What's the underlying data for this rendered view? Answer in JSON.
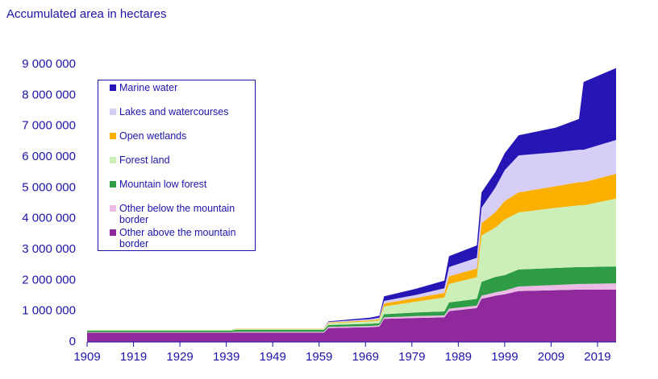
{
  "chart_data": {
    "type": "stacked-area",
    "title": "Accumulated area in hectares",
    "x": [
      1909,
      1940,
      1941,
      1960,
      1961,
      1970,
      1972,
      1973,
      1980,
      1986,
      1987,
      1993,
      1994,
      1997,
      1999,
      2002,
      2010,
      2015,
      2016,
      2023
    ],
    "series": [
      {
        "name": "Other above the mountain border",
        "color": "#902a9c",
        "values": [
          300000,
          300000,
          300000,
          300000,
          450000,
          480000,
          500000,
          750000,
          780000,
          800000,
          1000000,
          1100000,
          1400000,
          1500000,
          1550000,
          1650000,
          1680000,
          1700000,
          1700000,
          1700000
        ]
      },
      {
        "name": "Other below the mountain border",
        "color": "#ebbbe5",
        "values": [
          20000,
          20000,
          30000,
          30000,
          40000,
          40000,
          40000,
          50000,
          60000,
          60000,
          80000,
          80000,
          100000,
          110000,
          120000,
          150000,
          170000,
          180000,
          180000,
          200000
        ]
      },
      {
        "name": "Mountain low forest",
        "color": "#2f9d45",
        "values": [
          50000,
          50000,
          60000,
          60000,
          60000,
          70000,
          70000,
          100000,
          120000,
          130000,
          200000,
          220000,
          450000,
          500000,
          500000,
          550000,
          550000,
          550000,
          550000,
          550000
        ]
      },
      {
        "name": "Forest land",
        "color": "#ccefb8",
        "values": [
          20000,
          20000,
          30000,
          30000,
          60000,
          80000,
          90000,
          250000,
          350000,
          450000,
          600000,
          700000,
          1500000,
          1600000,
          1800000,
          1850000,
          1950000,
          2000000,
          2000000,
          2200000
        ]
      },
      {
        "name": "Open wetlands",
        "color": "#fbb000",
        "values": [
          0,
          0,
          10000,
          10000,
          20000,
          30000,
          40000,
          100000,
          120000,
          150000,
          250000,
          280000,
          400000,
          500000,
          600000,
          650000,
          700000,
          750000,
          750000,
          800000
        ]
      },
      {
        "name": "Lakes and watercourses",
        "color": "#d6cef6",
        "values": [
          0,
          0,
          0,
          0,
          20000,
          40000,
          50000,
          80000,
          100000,
          150000,
          300000,
          350000,
          500000,
          800000,
          1000000,
          1200000,
          1100000,
          1050000,
          1050000,
          1100000
        ]
      },
      {
        "name": "Marine water",
        "color": "#2616b5",
        "values": [
          0,
          0,
          0,
          0,
          20000,
          50000,
          60000,
          150000,
          200000,
          250000,
          350000,
          400000,
          500000,
          500000,
          550000,
          650000,
          800000,
          1000000,
          2200000,
          2330000
        ]
      }
    ],
    "xlim": [
      1909,
      2023
    ],
    "xticks": [
      1909,
      1919,
      1929,
      1939,
      1949,
      1959,
      1969,
      1979,
      1989,
      1999,
      2009,
      2019
    ],
    "ylim": [
      0,
      9000000
    ],
    "yticks": [
      0,
      {
        "value": 1000000,
        "label": "1 000 000"
      },
      {
        "value": 2000000,
        "label": "2 000 000"
      },
      {
        "value": 3000000,
        "label": "3 000 000"
      },
      {
        "value": 4000000,
        "label": "4 000 000"
      },
      {
        "value": 5000000,
        "label": "5 000 000"
      },
      {
        "value": 6000000,
        "label": "6 000 000"
      },
      {
        "value": 7000000,
        "label": "7 000 000"
      },
      {
        "value": 8000000,
        "label": "8 000 000"
      },
      {
        "value": 9000000,
        "label": "9 000 000"
      }
    ],
    "grid": false
  }
}
